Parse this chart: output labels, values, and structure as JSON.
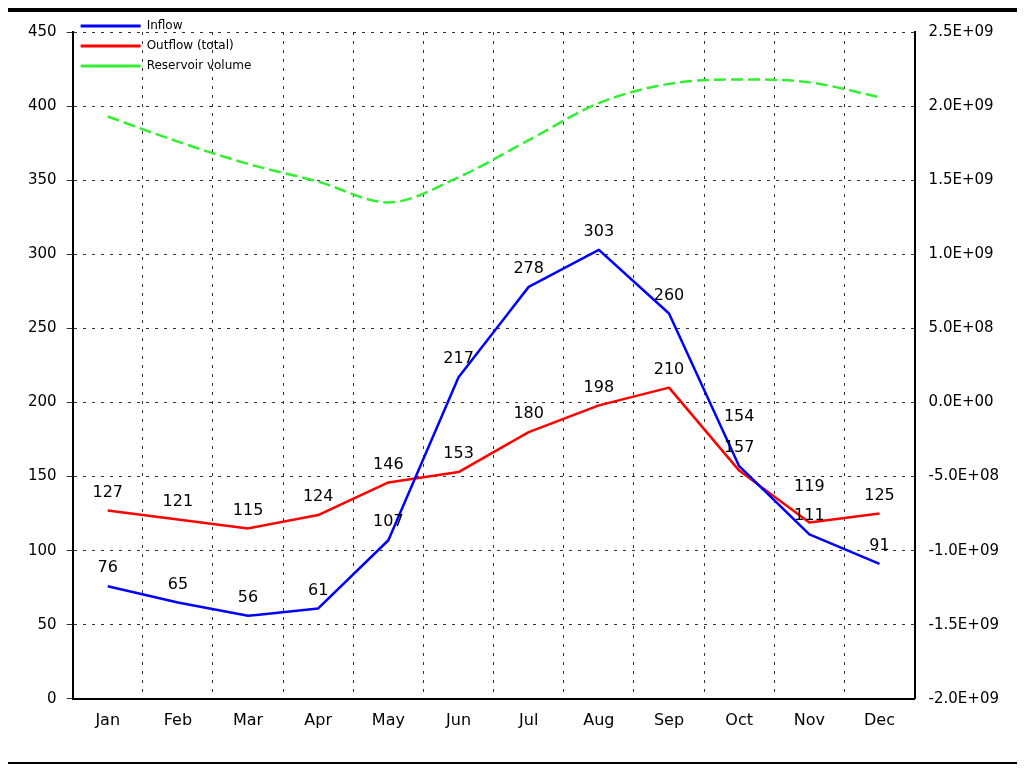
{
  "chart_data": {
    "type": "line",
    "categories": [
      "Jan",
      "Feb",
      "Mar",
      "Apr",
      "May",
      "Jun",
      "Jul",
      "Aug",
      "Sep",
      "Oct",
      "Nov",
      "Dec"
    ],
    "series": [
      {
        "name": "Inflow",
        "color": "#0000ff",
        "line_style": "solid",
        "values": [
          76,
          65,
          56,
          61,
          107,
          217,
          278,
          303,
          260,
          157,
          111,
          91
        ],
        "value_labels": [
          "76",
          "65",
          "56",
          "61",
          "107",
          "217",
          "278",
          "303",
          "260",
          "157",
          "111",
          "91"
        ]
      },
      {
        "name": "Outflow (total)",
        "color": "#ff0000",
        "line_style": "solid",
        "values": [
          127,
          121,
          115,
          124,
          146,
          153,
          180,
          198,
          210,
          154,
          119,
          125
        ],
        "value_labels": [
          "127",
          "121",
          "115",
          "124",
          "146",
          "153",
          "180",
          "198",
          "210",
          "154",
          "119",
          "125"
        ]
      },
      {
        "name": "Reservoir volume",
        "color": "#33ee33",
        "line_style": "dashed",
        "axis": "y2",
        "values": [
          1930000000,
          1760000000,
          1610000000,
          1490000000,
          1350000000,
          1520000000,
          1770000000,
          2020000000,
          2150000000,
          2180000000,
          2160000000,
          2060000000
        ]
      }
    ],
    "ylim": [
      0,
      450
    ],
    "yticks": [
      0,
      50,
      100,
      150,
      200,
      250,
      300,
      350,
      400,
      450
    ],
    "y2lim": [
      -2000000000,
      2500000000
    ],
    "y2ticks": [
      {
        "value": -2000000000,
        "label": "-2.0E+09"
      },
      {
        "value": -1500000000,
        "label": "-1.5E+09"
      },
      {
        "value": -1000000000,
        "label": "-1.0E+09"
      },
      {
        "value": -500000000,
        "label": "-5.0E+08"
      },
      {
        "value": 0,
        "label": "0.0E+00"
      },
      {
        "value": 500000000,
        "label": "5.0E+08"
      },
      {
        "value": 1000000000,
        "label": "1.0E+09"
      },
      {
        "value": 1500000000,
        "label": "1.5E+09"
      },
      {
        "value": 2000000000,
        "label": "2.0E+09"
      },
      {
        "value": 2500000000,
        "label": "2.5E+09"
      }
    ],
    "grid": true,
    "legend": "top left",
    "marker": "none"
  }
}
